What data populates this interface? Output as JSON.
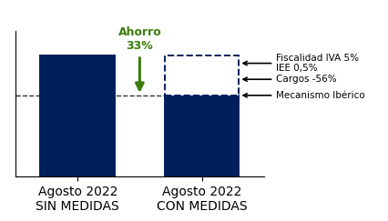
{
  "chart_data": {
    "type": "bar",
    "categories": [
      "Agosto 2022\nSIN MEDIDAS",
      "Agosto 2022\nCON MEDIDAS"
    ],
    "stacked": true,
    "series": [
      {
        "color": "#00205b",
        "values": [
          100,
          67
        ]
      },
      {
        "color": "#ffffff",
        "line_style": "dashed",
        "values": [
          null,
          33
        ]
      }
    ],
    "ylim": [
      0,
      120
    ],
    "tick_labels": "x",
    "annotations": [
      {
        "text": "Ahorro\n33%",
        "color": "#3a7d0a"
      },
      {
        "text": "Fiscalidad IVA 5%\nIEE 0,5%"
      },
      {
        "text": "Cargos -56%"
      },
      {
        "text": "Mecanismo Ibérico"
      }
    ]
  }
}
